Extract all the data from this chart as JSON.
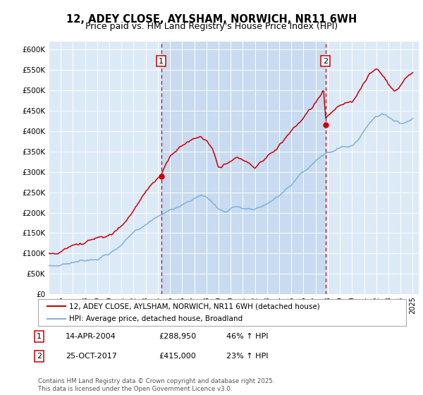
{
  "title": "12, ADEY CLOSE, AYLSHAM, NORWICH, NR11 6WH",
  "subtitle": "Price paid vs. HM Land Registry's House Price Index (HPI)",
  "ylim": [
    0,
    620000
  ],
  "xlim_start": 1995.0,
  "xlim_end": 2025.5,
  "plot_bg": "#dce9f7",
  "shade_bg": "#c8dbf0",
  "hpi_color": "#7ab4d8",
  "price_color": "#cc0000",
  "marker1_x": 2004.28,
  "marker1_y": 288950,
  "marker2_x": 2017.82,
  "marker2_y": 415000,
  "legend_label1": "12, ADEY CLOSE, AYLSHAM, NORWICH, NR11 6WH (detached house)",
  "legend_label2": "HPI: Average price, detached house, Broadland",
  "table_row1": [
    "1",
    "14-APR-2004",
    "£288,950",
    "46% ↑ HPI"
  ],
  "table_row2": [
    "2",
    "25-OCT-2017",
    "£415,000",
    "23% ↑ HPI"
  ],
  "footer": "Contains HM Land Registry data © Crown copyright and database right 2025.\nThis data is licensed under the Open Government Licence v3.0.",
  "title_fontsize": 10.5,
  "subtitle_fontsize": 9
}
